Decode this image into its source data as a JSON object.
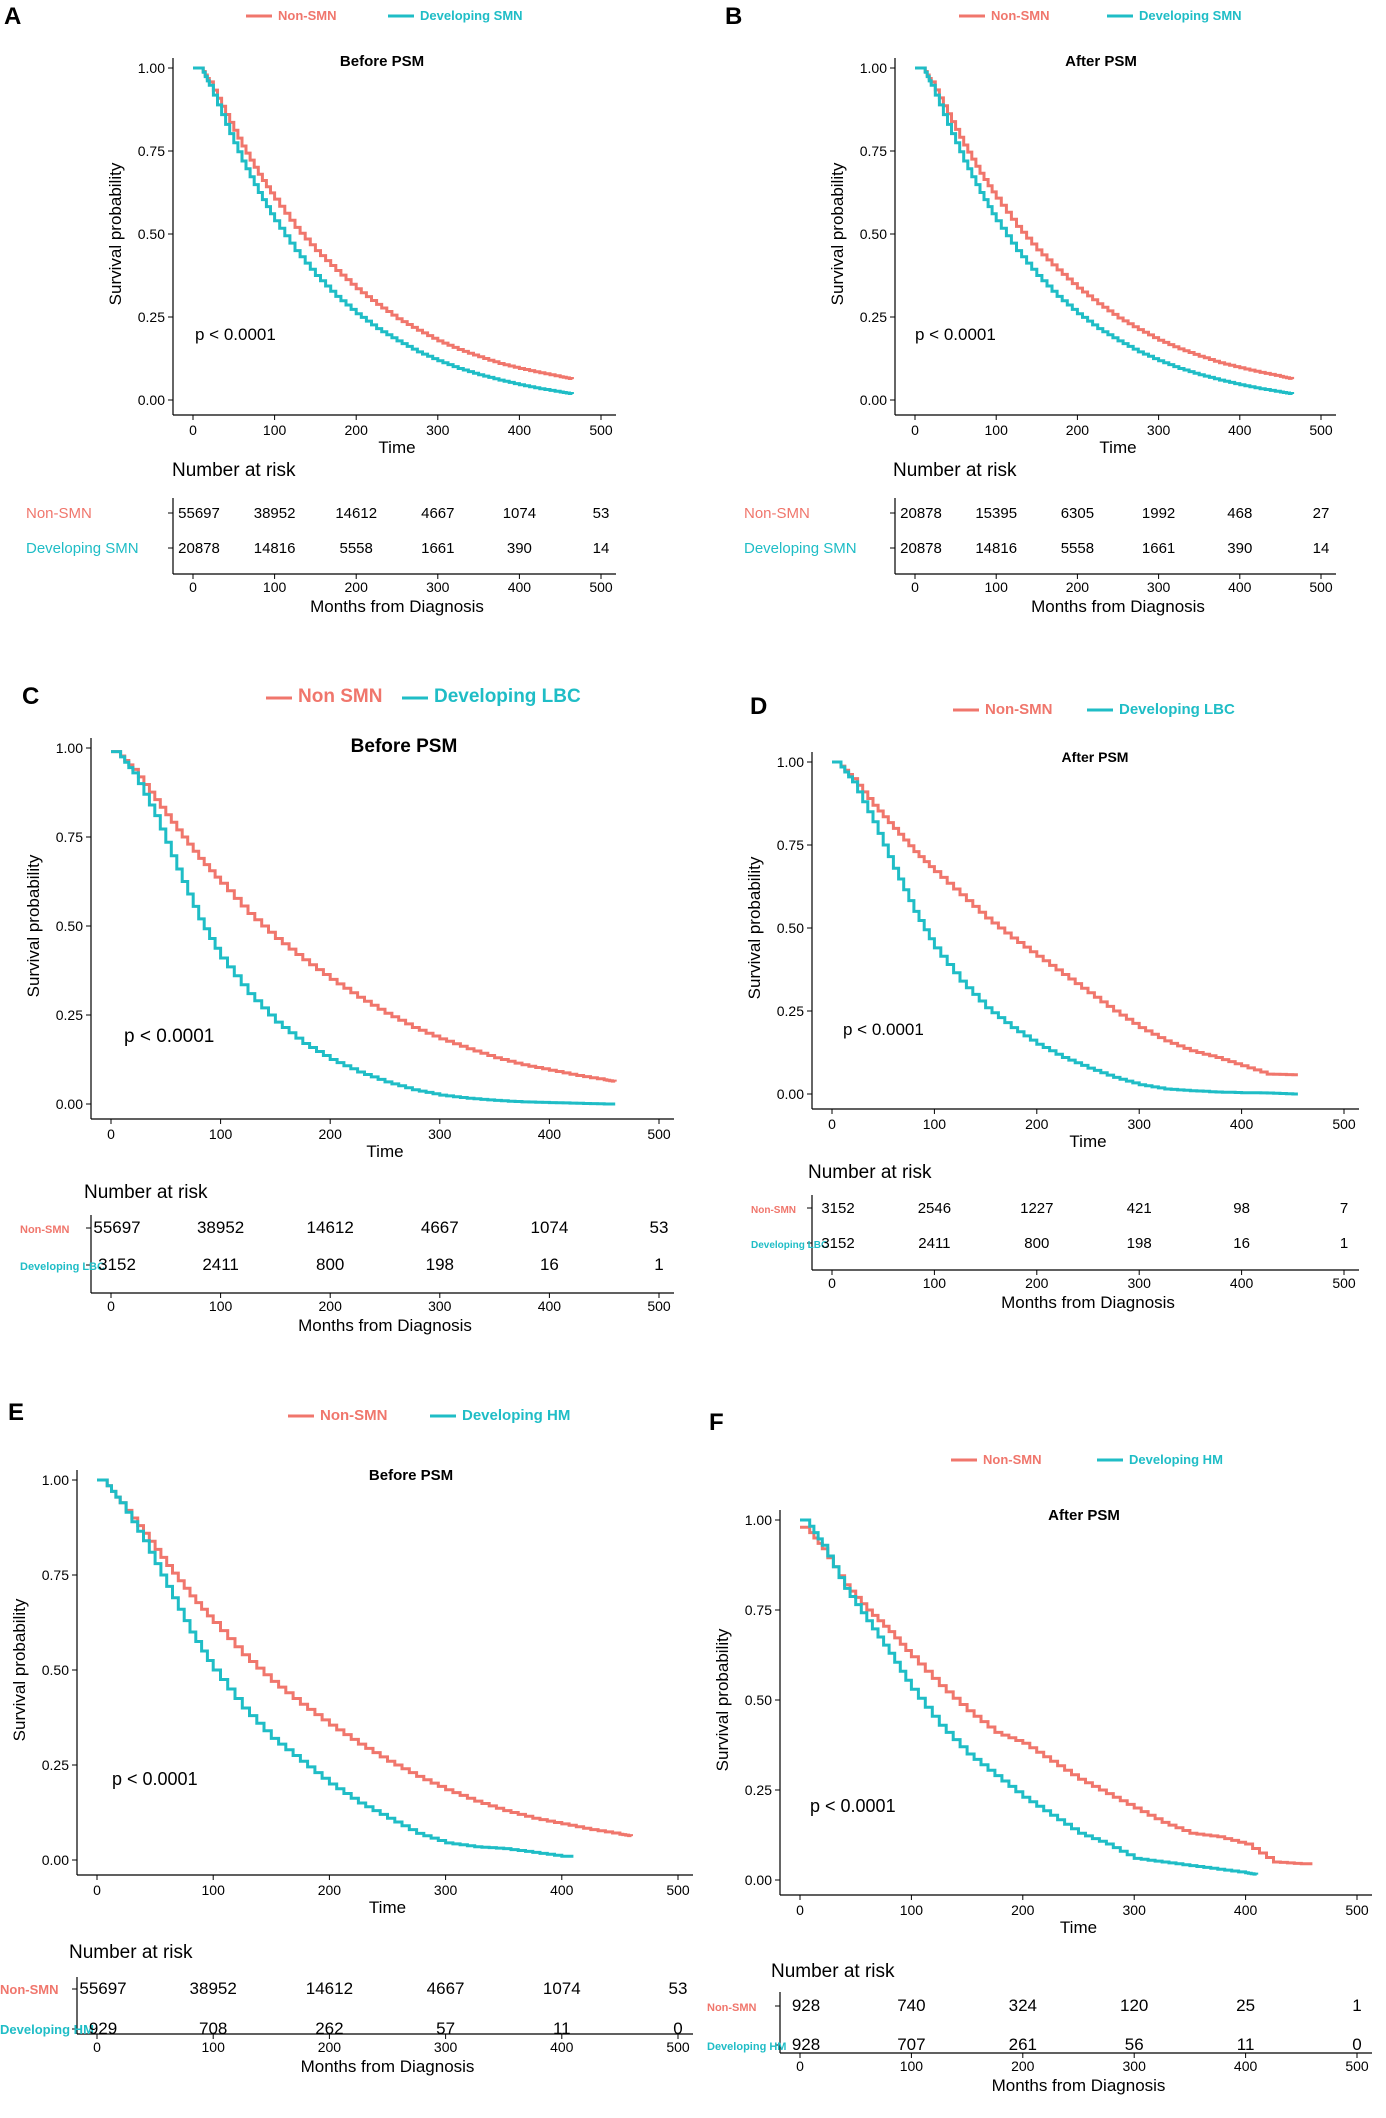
{
  "colors": {
    "non_smn": "#F0766C",
    "developing": "#1FBDC6",
    "axis": "#000000"
  },
  "chart_data": [
    {
      "type": "line",
      "panel_letter": "A",
      "title": "Before PSM",
      "xlabel": "Time",
      "ylabel": "Survival probability",
      "xlim": [
        0,
        500
      ],
      "ylim": [
        0,
        1
      ],
      "x_ticks": [
        "0",
        "100",
        "200",
        "300",
        "400",
        "500"
      ],
      "y_ticks": [
        "0.00",
        "0.25",
        "0.50",
        "0.75",
        "1.00"
      ],
      "p_value": "p < 0.0001",
      "legend": [
        "Non-SMN",
        "Developing  SMN"
      ],
      "series": [
        {
          "name": "Non-SMN",
          "x": [
            0,
            10,
            20,
            40,
            60,
            80,
            100,
            125,
            150,
            175,
            200,
            225,
            250,
            275,
            300,
            325,
            350,
            375,
            400,
            425,
            450,
            465
          ],
          "values": [
            1.0,
            1.0,
            0.958,
            0.86,
            0.765,
            0.68,
            0.605,
            0.52,
            0.45,
            0.39,
            0.335,
            0.288,
            0.245,
            0.21,
            0.178,
            0.152,
            0.13,
            0.11,
            0.095,
            0.082,
            0.07,
            0.063
          ]
        },
        {
          "name": "Developing  SMN",
          "x": [
            0,
            10,
            20,
            40,
            60,
            80,
            100,
            125,
            150,
            175,
            200,
            225,
            250,
            275,
            300,
            325,
            350,
            375,
            400,
            425,
            450,
            465
          ],
          "values": [
            1.0,
            1.0,
            0.948,
            0.83,
            0.72,
            0.625,
            0.54,
            0.45,
            0.375,
            0.312,
            0.26,
            0.215,
            0.178,
            0.145,
            0.118,
            0.095,
            0.076,
            0.06,
            0.046,
            0.034,
            0.024,
            0.018
          ]
        }
      ],
      "risk_table": {
        "title": "Number at risk",
        "xlabel": "Months from Diagnosis",
        "rows": [
          {
            "label": "Non-SMN",
            "values": [
              "55697",
              "38952",
              "14612",
              "4667",
              "1074",
              "53"
            ]
          },
          {
            "label": "Developing  SMN",
            "values": [
              "20878",
              "14816",
              "5558",
              "1661",
              "390",
              "14"
            ]
          }
        ]
      }
    },
    {
      "type": "line",
      "panel_letter": "B",
      "title": "After PSM",
      "xlabel": "Time",
      "ylabel": "Survival probability",
      "xlim": [
        0,
        500
      ],
      "ylim": [
        0,
        1
      ],
      "x_ticks": [
        "0",
        "100",
        "200",
        "300",
        "400",
        "500"
      ],
      "y_ticks": [
        "0.00",
        "0.25",
        "0.50",
        "0.75",
        "1.00"
      ],
      "p_value": "p < 0.0001",
      "legend": [
        "Non-SMN",
        "Developing SMN"
      ],
      "series": [
        {
          "name": "Non-SMN",
          "x": [
            0,
            10,
            20,
            40,
            60,
            80,
            100,
            125,
            150,
            175,
            200,
            225,
            250,
            275,
            300,
            325,
            350,
            375,
            400,
            425,
            450,
            465
          ],
          "values": [
            1.0,
            1.0,
            0.958,
            0.862,
            0.768,
            0.683,
            0.608,
            0.523,
            0.452,
            0.392,
            0.337,
            0.29,
            0.247,
            0.212,
            0.18,
            0.154,
            0.132,
            0.112,
            0.097,
            0.083,
            0.071,
            0.063
          ]
        },
        {
          "name": "Developing SMN",
          "x": [
            0,
            10,
            20,
            40,
            60,
            80,
            100,
            125,
            150,
            175,
            200,
            225,
            250,
            275,
            300,
            325,
            350,
            375,
            400,
            425,
            450,
            465
          ],
          "values": [
            1.0,
            1.0,
            0.948,
            0.83,
            0.72,
            0.625,
            0.54,
            0.45,
            0.375,
            0.312,
            0.26,
            0.215,
            0.178,
            0.145,
            0.118,
            0.095,
            0.076,
            0.06,
            0.046,
            0.034,
            0.024,
            0.018
          ]
        }
      ],
      "risk_table": {
        "title": "Number at risk",
        "xlabel": "Months from Diagnosis",
        "rows": [
          {
            "label": "Non-SMN",
            "values": [
              "20878",
              "15395",
              "6305",
              "1992",
              "468",
              "27"
            ]
          },
          {
            "label": "Developing SMN",
            "values": [
              "20878",
              "14816",
              "5558",
              "1661",
              "390",
              "14"
            ]
          }
        ]
      }
    },
    {
      "type": "line",
      "panel_letter": "C",
      "title": "Before PSM",
      "xlabel": "Time",
      "ylabel": "Survival probability",
      "xlim": [
        0,
        500
      ],
      "ylim": [
        0,
        1
      ],
      "x_ticks": [
        "0",
        "100",
        "200",
        "300",
        "400",
        "500"
      ],
      "y_ticks": [
        "0.00",
        "0.25",
        "0.50",
        "0.75",
        "1.00"
      ],
      "p_value": "p < 0.0001",
      "legend": [
        "Non SMN",
        "Developing  LBC"
      ],
      "series": [
        {
          "name": "Non SMN",
          "x": [
            0,
            5,
            20,
            40,
            60,
            80,
            100,
            125,
            150,
            175,
            200,
            225,
            250,
            275,
            300,
            325,
            350,
            375,
            400,
            425,
            450,
            460
          ],
          "values": [
            0.99,
            0.99,
            0.94,
            0.855,
            0.77,
            0.69,
            0.62,
            0.535,
            0.465,
            0.405,
            0.35,
            0.3,
            0.255,
            0.215,
            0.183,
            0.155,
            0.13,
            0.11,
            0.095,
            0.08,
            0.068,
            0.063
          ]
        },
        {
          "name": "Developing  LBC",
          "x": [
            0,
            5,
            20,
            40,
            60,
            80,
            100,
            125,
            150,
            175,
            200,
            225,
            250,
            275,
            300,
            325,
            350,
            375,
            400,
            425,
            450,
            460
          ],
          "values": [
            0.99,
            0.99,
            0.93,
            0.81,
            0.66,
            0.52,
            0.41,
            0.31,
            0.23,
            0.17,
            0.125,
            0.09,
            0.062,
            0.04,
            0.025,
            0.016,
            0.01,
            0.006,
            0.004,
            0.002,
            0.0,
            0.0
          ]
        }
      ],
      "risk_table": {
        "title": "Number at risk",
        "xlabel": "Months from Diagnosis",
        "rows": [
          {
            "label": "Non-SMN",
            "values": [
              "55697",
              "38952",
              "14612",
              "4667",
              "1074",
              "53"
            ]
          },
          {
            "label": "Developing LBC",
            "values": [
              "3152",
              "2411",
              "800",
              "198",
              "16",
              "1"
            ]
          }
        ]
      }
    },
    {
      "type": "line",
      "panel_letter": "D",
      "title": "After PSM",
      "xlabel": "Time",
      "ylabel": "Survival probability",
      "xlim": [
        0,
        500
      ],
      "ylim": [
        0,
        1
      ],
      "x_ticks": [
        "0",
        "100",
        "200",
        "300",
        "400",
        "500"
      ],
      "y_ticks": [
        "0.00",
        "0.25",
        "0.50",
        "0.75",
        "1.00"
      ],
      "p_value": "p < 0.0001",
      "legend": [
        "Non-SMN",
        "Developing LBC"
      ],
      "series": [
        {
          "name": "Non-SMN",
          "x": [
            0,
            5,
            20,
            40,
            60,
            80,
            100,
            125,
            150,
            175,
            200,
            225,
            250,
            275,
            300,
            325,
            350,
            375,
            400,
            425,
            450,
            455
          ],
          "values": [
            1.0,
            1.0,
            0.95,
            0.87,
            0.8,
            0.73,
            0.67,
            0.6,
            0.53,
            0.47,
            0.415,
            0.36,
            0.305,
            0.25,
            0.2,
            0.16,
            0.13,
            0.11,
            0.085,
            0.06,
            0.058,
            0.058
          ]
        },
        {
          "name": "Developing LBC",
          "x": [
            0,
            5,
            20,
            40,
            60,
            80,
            100,
            125,
            150,
            175,
            200,
            225,
            250,
            275,
            300,
            325,
            350,
            375,
            400,
            425,
            450,
            455
          ],
          "values": [
            1.0,
            1.0,
            0.94,
            0.82,
            0.68,
            0.55,
            0.44,
            0.34,
            0.26,
            0.2,
            0.15,
            0.11,
            0.078,
            0.05,
            0.028,
            0.015,
            0.01,
            0.006,
            0.004,
            0.003,
            0.0,
            0.0
          ]
        }
      ],
      "risk_table": {
        "title": "Number at risk",
        "xlabel": "Months from Diagnosis",
        "rows": [
          {
            "label": "Non-SMN",
            "values": [
              "3152",
              "2546",
              "1227",
              "421",
              "98",
              "7"
            ]
          },
          {
            "label": "Developing LBC",
            "values": [
              "3152",
              "2411",
              "800",
              "198",
              "16",
              "1"
            ]
          }
        ]
      }
    },
    {
      "type": "line",
      "panel_letter": "E",
      "title": "Before PSM",
      "xlabel": "Time",
      "ylabel": "Survival probability",
      "xlim": [
        0,
        500
      ],
      "ylim": [
        0,
        1
      ],
      "x_ticks": [
        "0",
        "100",
        "200",
        "300",
        "400",
        "500"
      ],
      "y_ticks": [
        "0.00",
        "0.25",
        "0.50",
        "0.75",
        "1.00"
      ],
      "p_value": "p < 0.0001",
      "legend": [
        "Non-SMN",
        "Developing  HM"
      ],
      "series": [
        {
          "name": "Non-SMN",
          "x": [
            0,
            5,
            20,
            40,
            60,
            80,
            100,
            125,
            150,
            175,
            200,
            225,
            250,
            275,
            300,
            325,
            350,
            375,
            400,
            425,
            450,
            460
          ],
          "values": [
            1.0,
            1.0,
            0.94,
            0.86,
            0.775,
            0.695,
            0.625,
            0.54,
            0.47,
            0.41,
            0.355,
            0.305,
            0.26,
            0.22,
            0.185,
            0.155,
            0.13,
            0.11,
            0.095,
            0.08,
            0.068,
            0.063
          ]
        },
        {
          "name": "Developing  HM",
          "x": [
            0,
            5,
            20,
            40,
            60,
            80,
            100,
            125,
            150,
            175,
            200,
            225,
            250,
            275,
            300,
            325,
            350,
            375,
            400,
            410
          ],
          "values": [
            1.0,
            1.0,
            0.94,
            0.84,
            0.72,
            0.6,
            0.5,
            0.4,
            0.32,
            0.26,
            0.2,
            0.15,
            0.11,
            0.07,
            0.045,
            0.035,
            0.03,
            0.02,
            0.01,
            0.01
          ]
        }
      ],
      "risk_table": {
        "title": "Number at risk",
        "xlabel": "Months from Diagnosis",
        "rows": [
          {
            "label": "Non-SMN",
            "values": [
              "55697",
              "38952",
              "14612",
              "4667",
              "1074",
              "53"
            ]
          },
          {
            "label": "Developing HM",
            "values": [
              "929",
              "708",
              "262",
              "57",
              "11",
              "0"
            ]
          }
        ]
      }
    },
    {
      "type": "line",
      "panel_letter": "F",
      "title": "After PSM",
      "xlabel": "Time",
      "ylabel": "Survival probability",
      "xlim": [
        0,
        500
      ],
      "ylim": [
        0,
        1
      ],
      "x_ticks": [
        "0",
        "100",
        "200",
        "300",
        "400",
        "500"
      ],
      "y_ticks": [
        "0.00",
        "0.25",
        "0.50",
        "0.75",
        "1.00"
      ],
      "p_value": "p < 0.0001",
      "legend": [
        "Non-SMN",
        "Developing HM"
      ],
      "series": [
        {
          "name": "Non-SMN",
          "x": [
            0,
            5,
            20,
            40,
            60,
            80,
            100,
            125,
            150,
            175,
            200,
            225,
            250,
            275,
            300,
            325,
            350,
            375,
            400,
            425,
            450,
            460
          ],
          "values": [
            0.98,
            0.98,
            0.92,
            0.82,
            0.75,
            0.69,
            0.62,
            0.54,
            0.47,
            0.41,
            0.38,
            0.33,
            0.28,
            0.24,
            0.2,
            0.16,
            0.13,
            0.12,
            0.1,
            0.05,
            0.045,
            0.045
          ]
        },
        {
          "name": "Developing HM",
          "x": [
            0,
            5,
            20,
            40,
            60,
            80,
            100,
            125,
            150,
            175,
            200,
            225,
            250,
            275,
            300,
            325,
            350,
            375,
            400,
            410
          ],
          "values": [
            1.0,
            1.0,
            0.93,
            0.81,
            0.72,
            0.63,
            0.53,
            0.43,
            0.35,
            0.29,
            0.23,
            0.18,
            0.13,
            0.1,
            0.06,
            0.05,
            0.04,
            0.03,
            0.02,
            0.015
          ]
        }
      ],
      "risk_table": {
        "title": "Number at risk",
        "xlabel": "Months from Diagnosis",
        "rows": [
          {
            "label": "Non-SMN",
            "values": [
              "928",
              "740",
              "324",
              "120",
              "25",
              "1"
            ]
          },
          {
            "label": "Developing HM",
            "values": [
              "928",
              "707",
              "261",
              "56",
              "11",
              "0"
            ]
          }
        ]
      }
    }
  ]
}
